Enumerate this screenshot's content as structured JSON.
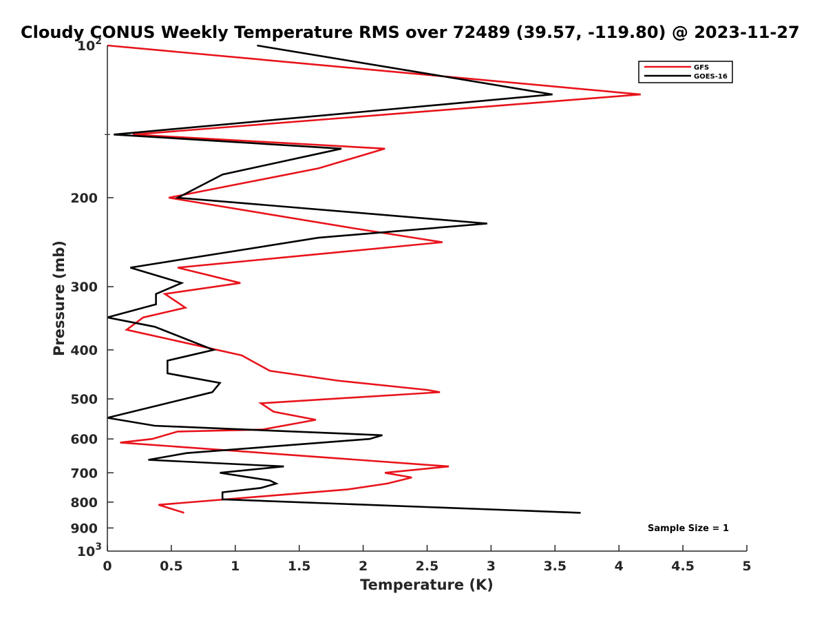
{
  "chart_data": {
    "type": "line",
    "title": "Cloudy CONUS Weekly Temperature RMS over 72489 (39.57, -119.80) @ 2023-11-27",
    "xlabel": "Temperature (K)",
    "ylabel": "Pressure (mb)",
    "xlim": [
      0,
      5
    ],
    "ylim": [
      100,
      1000
    ],
    "y_scale": "log",
    "y_reversed": true,
    "x_ticks": [
      "0",
      "0.5",
      "1",
      "1.5",
      "2",
      "2.5",
      "3",
      "3.5",
      "4",
      "4.5",
      "5"
    ],
    "y_ticks": [
      {
        "value": 100,
        "base": "10",
        "exp": "2"
      },
      {
        "value": 200,
        "label": "200"
      },
      {
        "value": 300,
        "label": "300"
      },
      {
        "value": 400,
        "label": "400"
      },
      {
        "value": 500,
        "label": "500"
      },
      {
        "value": 600,
        "label": "600"
      },
      {
        "value": 700,
        "label": "700"
      },
      {
        "value": 800,
        "label": "800"
      },
      {
        "value": 900,
        "label": "900"
      },
      {
        "value": 1000,
        "base": "10",
        "exp": "3"
      }
    ],
    "grid": false,
    "legend_position": "top-right",
    "annotation": "Sample Size = 1",
    "series": [
      {
        "name": "GFS",
        "color": "#e8131b",
        "points": [
          [
            0.0,
            100
          ],
          [
            4.17,
            125
          ],
          [
            0.2,
            150
          ],
          [
            2.17,
            160
          ],
          [
            1.65,
            175
          ],
          [
            0.48,
            200
          ],
          [
            1.93,
            230
          ],
          [
            2.62,
            245
          ],
          [
            0.55,
            275
          ],
          [
            1.04,
            295
          ],
          [
            0.45,
            310
          ],
          [
            0.61,
            330
          ],
          [
            0.28,
            345
          ],
          [
            0.15,
            365
          ],
          [
            1.05,
            410
          ],
          [
            1.27,
            440
          ],
          [
            1.8,
            460
          ],
          [
            2.5,
            480
          ],
          [
            2.6,
            485
          ],
          [
            1.2,
            510
          ],
          [
            1.3,
            530
          ],
          [
            1.63,
            550
          ],
          [
            1.21,
            575
          ],
          [
            0.55,
            580
          ],
          [
            0.35,
            600
          ],
          [
            0.1,
            610
          ],
          [
            2.67,
            680
          ],
          [
            2.17,
            700
          ],
          [
            2.38,
            715
          ],
          [
            2.19,
            735
          ],
          [
            1.88,
            755
          ],
          [
            0.4,
            810
          ],
          [
            0.6,
            840
          ]
        ]
      },
      {
        "name": "GOES-16",
        "color": "#000000",
        "points": [
          [
            1.17,
            100
          ],
          [
            3.48,
            125
          ],
          [
            0.05,
            150
          ],
          [
            1.83,
            160
          ],
          [
            0.9,
            180
          ],
          [
            0.55,
            200
          ],
          [
            2.97,
            225
          ],
          [
            1.65,
            240
          ],
          [
            0.18,
            275
          ],
          [
            0.58,
            295
          ],
          [
            0.38,
            310
          ],
          [
            0.38,
            325
          ],
          [
            0.0,
            345
          ],
          [
            0.37,
            360
          ],
          [
            0.83,
            400
          ],
          [
            0.47,
            420
          ],
          [
            0.47,
            445
          ],
          [
            0.88,
            465
          ],
          [
            0.82,
            485
          ],
          [
            0.0,
            545
          ],
          [
            0.37,
            565
          ],
          [
            2.15,
            590
          ],
          [
            2.05,
            600
          ],
          [
            0.62,
            640
          ],
          [
            0.32,
            660
          ],
          [
            1.38,
            680
          ],
          [
            0.88,
            700
          ],
          [
            1.27,
            725
          ],
          [
            1.32,
            735
          ],
          [
            1.2,
            750
          ],
          [
            0.9,
            765
          ],
          [
            0.9,
            790
          ],
          [
            3.7,
            840
          ]
        ]
      }
    ]
  }
}
